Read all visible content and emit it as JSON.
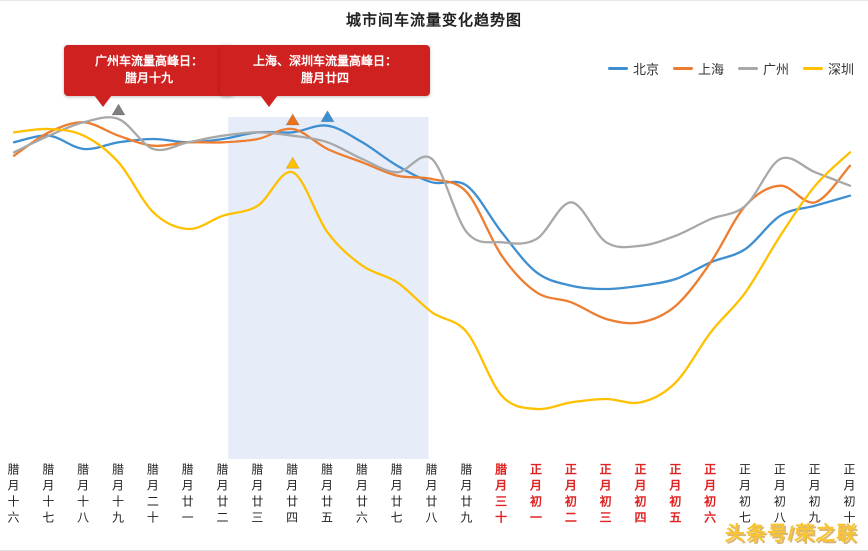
{
  "title": "城市间车流量变化趋势图",
  "annotations": [
    {
      "line1": "广州车流量高峰日：",
      "line2": "腊月十九"
    },
    {
      "line1": "上海、深圳车流量高峰日：",
      "line2": "腊月廿四"
    }
  ],
  "watermark": "头条号/荣之联",
  "colors": {
    "callout_bg": "#d02121",
    "axis_red": "#e02222",
    "watermark": "#f8c433",
    "title": "#222222",
    "legend_text": "#333333"
  },
  "chart_data": {
    "type": "line",
    "title": "城市间车流量变化趋势图",
    "xlabel": "",
    "ylabel": "",
    "grid": false,
    "legend_position": "top-right",
    "ylim": [
      0,
      105
    ],
    "categories": [
      "腊月十六",
      "腊月十七",
      "腊月十八",
      "腊月十九",
      "腊月二十",
      "腊月廿一",
      "腊月廿二",
      "腊月廿三",
      "腊月廿四",
      "腊月廿五",
      "腊月廿六",
      "腊月廿七",
      "腊月廿八",
      "腊月廿九",
      "腊月三十",
      "正月初一",
      "正月初二",
      "正月初三",
      "正月初四",
      "正月初五",
      "正月初六",
      "正月初七",
      "正月初八",
      "正月初九",
      "正月初十"
    ],
    "red_category_indices": [
      14,
      15,
      16,
      17,
      18,
      19,
      20
    ],
    "series": [
      {
        "name": "北京",
        "color": "#3d8fd1",
        "marker_color": "#3d8fd1",
        "values": [
          95,
          97,
          93,
          95,
          96,
          95,
          96,
          98,
          98,
          100,
          95,
          88,
          83,
          82,
          68,
          56,
          52,
          51,
          52,
          54,
          59,
          63,
          73,
          76,
          79
        ]
      },
      {
        "name": "上海",
        "color": "#ed7d31",
        "marker_color": "#e8731c",
        "values": [
          91,
          98,
          101,
          97,
          94,
          95,
          95,
          96,
          99,
          93,
          89,
          85,
          84,
          80,
          61,
          50,
          47,
          42,
          41,
          46,
          59,
          76,
          82,
          77,
          88
        ]
      },
      {
        "name": "广州",
        "color": "#a8a8a8",
        "marker_color": "#7f7f7f",
        "values": [
          92,
          97,
          101,
          102,
          93,
          95,
          97,
          98,
          97,
          95,
          90,
          86,
          90,
          68,
          65,
          66,
          77,
          65,
          64,
          67,
          72,
          76,
          90,
          86,
          82
        ]
      },
      {
        "name": "深圳",
        "color": "#ffc000",
        "marker_color": "#ffc000",
        "values": [
          98,
          99,
          97,
          89,
          74,
          69,
          73,
          76,
          86,
          68,
          58,
          53,
          44,
          38,
          19,
          15,
          17,
          18,
          17,
          23,
          38,
          50,
          67,
          82,
          92
        ]
      }
    ],
    "markers": [
      {
        "series": "广州",
        "category": "腊月十九",
        "index": 3
      },
      {
        "series": "上海",
        "category": "腊月廿四",
        "index": 8
      },
      {
        "series": "深圳",
        "category": "腊月廿四",
        "index": 8
      },
      {
        "series": "北京",
        "category": "腊月廿五",
        "index": 9
      }
    ],
    "highlight_band": {
      "from_index": 6.15,
      "to_index": 11.9,
      "from": "腊月廿三",
      "to": "腊月廿八",
      "color": "#dce6f5"
    }
  }
}
